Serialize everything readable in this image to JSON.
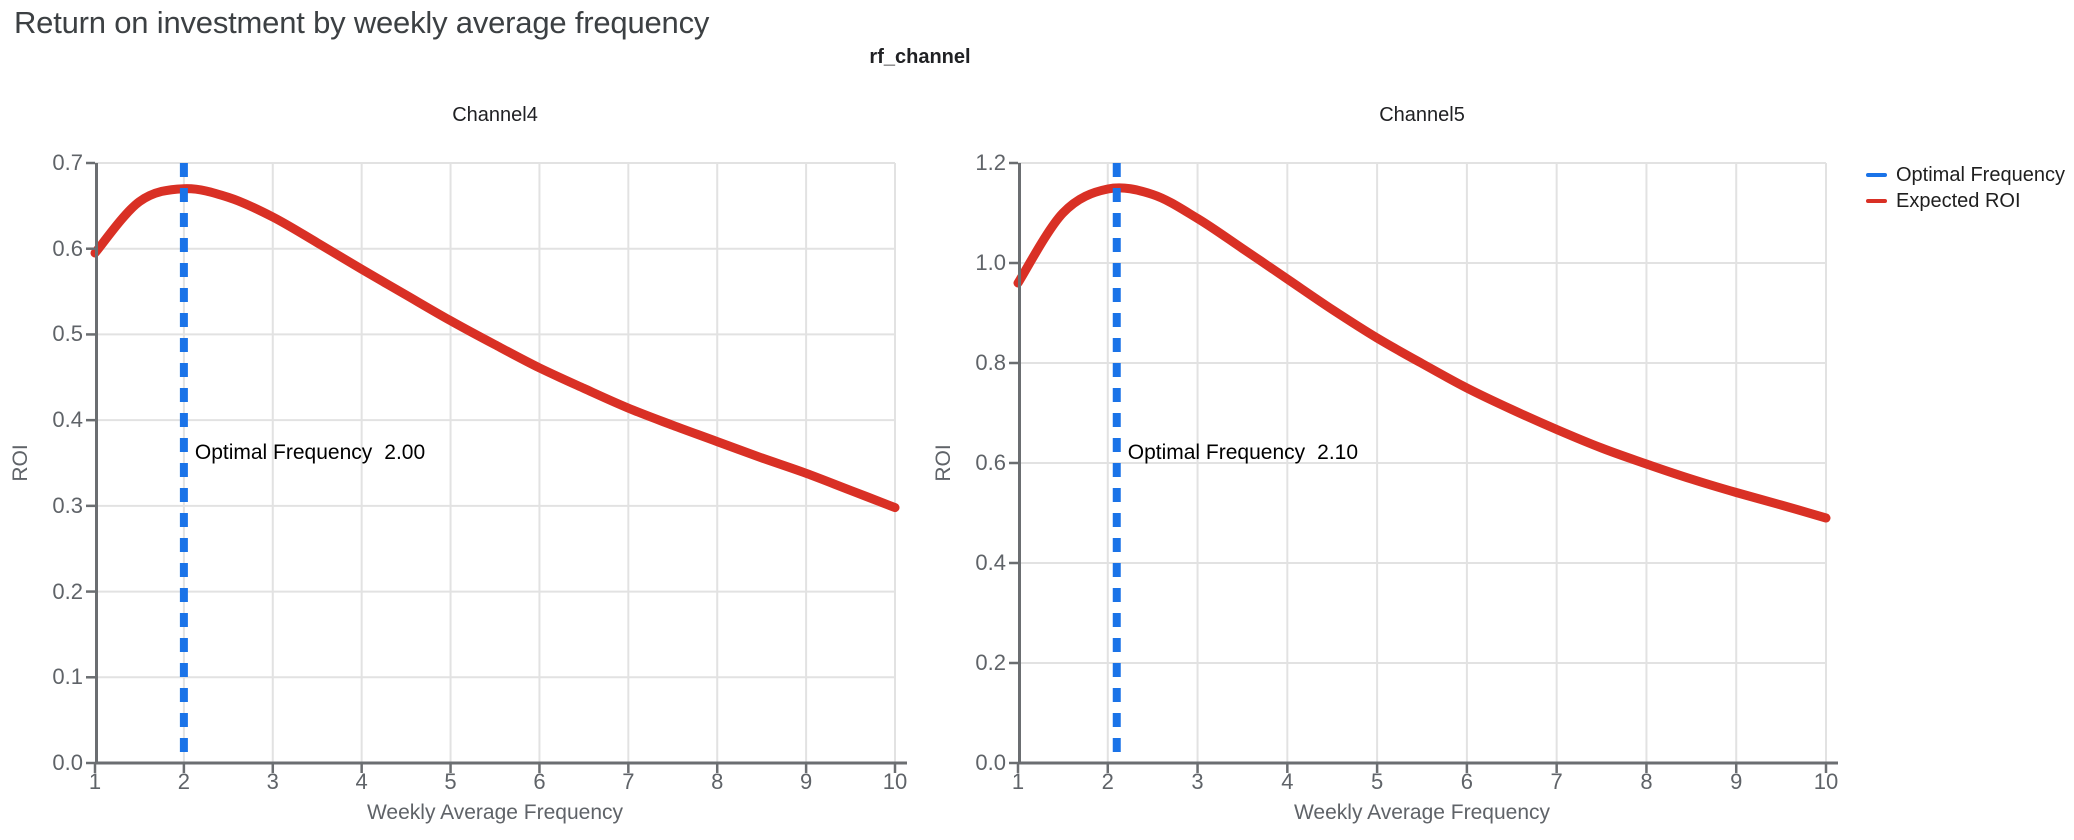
{
  "page": {
    "title": "Return on investment by weekly average frequency",
    "facet_title": "rf_channel"
  },
  "legend": {
    "items": [
      {
        "label": "Optimal Frequency",
        "color": "#1a73e8"
      },
      {
        "label": "Expected ROI",
        "color": "#d93025"
      }
    ]
  },
  "colors": {
    "expected_roi": "#d93025",
    "optimal_frequency": "#1a73e8"
  },
  "chart_data": [
    {
      "type": "line",
      "title": "Channel4",
      "xlabel": "Weekly Average Frequency",
      "ylabel": "ROI",
      "xlim": [
        1,
        10
      ],
      "ylim": [
        0.0,
        0.7
      ],
      "grid": true,
      "x_ticks": [
        1,
        2,
        3,
        4,
        5,
        6,
        7,
        8,
        9,
        10
      ],
      "x_tick_labels": [
        "1",
        "2",
        "3",
        "4",
        "5",
        "6",
        "7",
        "8",
        "9",
        "10"
      ],
      "y_ticks": [
        0.0,
        0.1,
        0.2,
        0.3,
        0.4,
        0.5,
        0.6,
        0.7
      ],
      "y_tick_labels": [
        "0.0",
        "0.1",
        "0.2",
        "0.3",
        "0.4",
        "0.5",
        "0.6",
        "0.7"
      ],
      "optimal_frequency": 2.0,
      "annotation": {
        "label": "Optimal Frequency",
        "value": "2.00"
      },
      "series": [
        {
          "name": "Expected ROI",
          "type": "line",
          "color": "#d93025",
          "x": [
            1,
            1.5,
            2,
            2.5,
            3,
            3.5,
            4,
            4.5,
            5,
            5.5,
            6,
            6.5,
            7,
            7.5,
            8,
            8.5,
            9,
            9.5,
            10
          ],
          "y": [
            0.595,
            0.655,
            0.67,
            0.66,
            0.637,
            0.607,
            0.576,
            0.546,
            0.516,
            0.488,
            0.461,
            0.437,
            0.414,
            0.394,
            0.375,
            0.356,
            0.338,
            0.318,
            0.298
          ]
        },
        {
          "name": "Optimal Frequency",
          "type": "vline",
          "style": "dashed",
          "color": "#1a73e8",
          "x": 2.0
        }
      ]
    },
    {
      "type": "line",
      "title": "Channel5",
      "xlabel": "Weekly Average Frequency",
      "ylabel": "ROI",
      "xlim": [
        1,
        10
      ],
      "ylim": [
        0.0,
        1.2
      ],
      "grid": true,
      "x_ticks": [
        1,
        2,
        3,
        4,
        5,
        6,
        7,
        8,
        9,
        10
      ],
      "x_tick_labels": [
        "1",
        "2",
        "3",
        "4",
        "5",
        "6",
        "7",
        "8",
        "9",
        "10"
      ],
      "y_ticks": [
        0.0,
        0.2,
        0.4,
        0.6,
        0.8,
        1.0,
        1.2
      ],
      "y_tick_labels": [
        "0.0",
        "0.2",
        "0.4",
        "0.6",
        "0.8",
        "1.0",
        "1.2"
      ],
      "optimal_frequency": 2.1,
      "annotation": {
        "label": "Optimal Frequency",
        "value": "2.10"
      },
      "series": [
        {
          "name": "Expected ROI",
          "type": "line",
          "color": "#d93025",
          "x": [
            1,
            1.5,
            2,
            2.5,
            3,
            3.5,
            4,
            4.5,
            5,
            5.5,
            6,
            6.5,
            7,
            7.5,
            8,
            8.5,
            9,
            9.5,
            10
          ],
          "y": [
            0.96,
            1.1,
            1.148,
            1.137,
            1.089,
            1.029,
            0.968,
            0.907,
            0.85,
            0.799,
            0.75,
            0.707,
            0.667,
            0.63,
            0.598,
            0.568,
            0.541,
            0.516,
            0.49
          ]
        },
        {
          "name": "Optimal Frequency",
          "type": "vline",
          "style": "dashed",
          "color": "#1a73e8",
          "x": 2.1
        }
      ]
    }
  ]
}
